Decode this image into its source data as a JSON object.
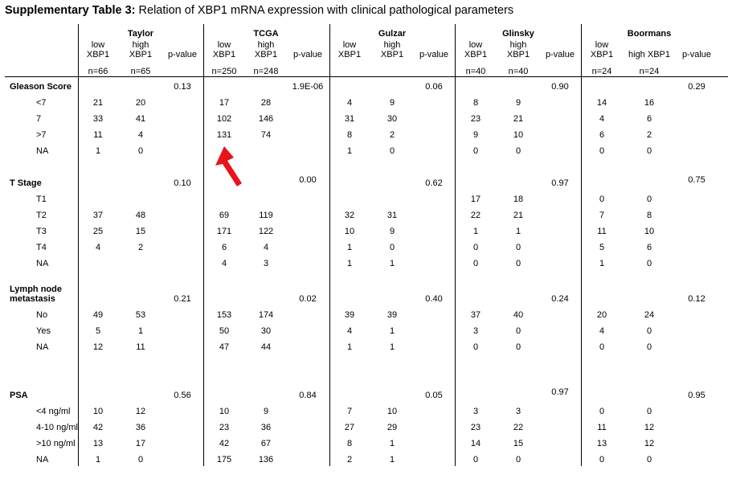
{
  "title": {
    "bold": "Supplementary Table 3:",
    "rest": " Relation of XBP1 mRNA expression with clinical pathological parameters"
  },
  "groups": [
    {
      "name": "Taylor",
      "low": [
        "low",
        "XBP1"
      ],
      "high": [
        "high",
        "XBP1"
      ],
      "n_low": "n=66",
      "n_high": "n=65"
    },
    {
      "name": "TCGA",
      "low": [
        "low",
        "XBP1"
      ],
      "high": [
        "high",
        "XBP1"
      ],
      "n_low": "n=250",
      "n_high": "n=248"
    },
    {
      "name": "Gulzar",
      "low": [
        "low",
        "XBP1"
      ],
      "high": [
        "high",
        "XBP1"
      ],
      "n_low": "",
      "n_high": ""
    },
    {
      "name": "Glinsky",
      "low": [
        "low",
        "XBP1"
      ],
      "high": [
        "high",
        "XBP1"
      ],
      "n_low": "n=40",
      "n_high": "n=40"
    },
    {
      "name": "Boormans",
      "low": [
        "low",
        "XBP1"
      ],
      "high": [
        "high XBP1"
      ],
      "n_low": "n=24",
      "n_high": "n=24"
    }
  ],
  "pvalue_label": "p-value",
  "sections": [
    {
      "label": [
        "Gleason Score"
      ],
      "pvalues": [
        "0.13",
        "1.9E-06",
        "0.06",
        "0.90",
        "0.29"
      ],
      "rows": [
        {
          "label": "<7",
          "values": [
            [
              "21",
              "20"
            ],
            [
              "17",
              "28"
            ],
            [
              "4",
              "9"
            ],
            [
              "8",
              "9"
            ],
            [
              "14",
              "16"
            ]
          ]
        },
        {
          "label": "7",
          "values": [
            [
              "33",
              "41"
            ],
            [
              "102",
              "146"
            ],
            [
              "31",
              "30"
            ],
            [
              "23",
              "21"
            ],
            [
              "4",
              "6"
            ]
          ]
        },
        {
          "label": ">7",
          "values": [
            [
              "11",
              "4"
            ],
            [
              "131",
              "74"
            ],
            [
              "8",
              "2"
            ],
            [
              "9",
              "10"
            ],
            [
              "6",
              "2"
            ]
          ]
        },
        {
          "label": "NA",
          "values": [
            [
              "1",
              "0"
            ],
            [
              "",
              ""
            ],
            [
              "1",
              "0"
            ],
            [
              "0",
              "0"
            ],
            [
              "0",
              "0"
            ]
          ]
        }
      ]
    },
    {
      "label": [
        "T Stage"
      ],
      "pvalues": [
        "0.10",
        "0.00",
        "0.62",
        "0.97",
        "0.75"
      ],
      "rows": [
        {
          "label": "T1",
          "values": [
            [
              "",
              ""
            ],
            [
              "",
              ""
            ],
            [
              "",
              ""
            ],
            [
              "17",
              "18"
            ],
            [
              "0",
              "0"
            ]
          ]
        },
        {
          "label": "T2",
          "values": [
            [
              "37",
              "48"
            ],
            [
              "69",
              "119"
            ],
            [
              "32",
              "31"
            ],
            [
              "22",
              "21"
            ],
            [
              "7",
              "8"
            ]
          ]
        },
        {
          "label": "T3",
          "values": [
            [
              "25",
              "15"
            ],
            [
              "171",
              "122"
            ],
            [
              "10",
              "9"
            ],
            [
              "1",
              "1"
            ],
            [
              "11",
              "10"
            ]
          ]
        },
        {
          "label": "T4",
          "values": [
            [
              "4",
              "2"
            ],
            [
              "6",
              "4"
            ],
            [
              "1",
              "0"
            ],
            [
              "0",
              "0"
            ],
            [
              "5",
              "6"
            ]
          ]
        },
        {
          "label": "NA",
          "values": [
            [
              "",
              ""
            ],
            [
              "4",
              "3"
            ],
            [
              "1",
              "1"
            ],
            [
              "0",
              "0"
            ],
            [
              "1",
              "0"
            ]
          ]
        }
      ]
    },
    {
      "label": [
        "Lymph node",
        "metastasis"
      ],
      "pvalues": [
        "0.21",
        "0.02",
        "0.40",
        "0.24",
        "0.12"
      ],
      "rows": [
        {
          "label": "No",
          "values": [
            [
              "49",
              "53"
            ],
            [
              "153",
              "174"
            ],
            [
              "39",
              "39"
            ],
            [
              "37",
              "40"
            ],
            [
              "20",
              "24"
            ]
          ]
        },
        {
          "label": "Yes",
          "values": [
            [
              "5",
              "1"
            ],
            [
              "50",
              "30"
            ],
            [
              "4",
              "1"
            ],
            [
              "3",
              "0"
            ],
            [
              "4",
              "0"
            ]
          ]
        },
        {
          "label": "NA",
          "values": [
            [
              "12",
              "11"
            ],
            [
              "47",
              "44"
            ],
            [
              "1",
              "1"
            ],
            [
              "0",
              "0"
            ],
            [
              "0",
              "0"
            ]
          ]
        }
      ]
    },
    {
      "label": [
        "PSA"
      ],
      "pvalues": [
        "0.56",
        "0.84",
        "0.05",
        "0.97",
        "0.95"
      ],
      "rows": [
        {
          "label": "<4 ng/ml",
          "values": [
            [
              "10",
              "12"
            ],
            [
              "10",
              "9"
            ],
            [
              "7",
              "10"
            ],
            [
              "3",
              "3"
            ],
            [
              "0",
              "0"
            ]
          ]
        },
        {
          "label": "4-10 ng/ml",
          "values": [
            [
              "42",
              "36"
            ],
            [
              "23",
              "36"
            ],
            [
              "27",
              "29"
            ],
            [
              "23",
              "22"
            ],
            [
              "11",
              "12"
            ]
          ]
        },
        {
          "label": ">10 ng/ml",
          "values": [
            [
              "13",
              "17"
            ],
            [
              "42",
              "67"
            ],
            [
              "8",
              "1"
            ],
            [
              "14",
              "15"
            ],
            [
              "13",
              "12"
            ]
          ]
        },
        {
          "label": "NA",
          "values": [
            [
              "1",
              "0"
            ],
            [
              "175",
              "136"
            ],
            [
              "2",
              "1"
            ],
            [
              "0",
              "0"
            ],
            [
              "0",
              "0"
            ]
          ]
        }
      ]
    }
  ],
  "annotation": {
    "arrow_color": "#e8141c"
  }
}
